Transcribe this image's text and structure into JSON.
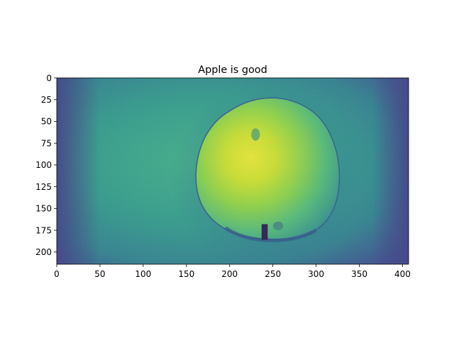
{
  "chart_data": {
    "type": "heatmap",
    "title": "Apple is good",
    "xlabel": "",
    "ylabel": "",
    "image_size": {
      "width": 407,
      "height": 214
    },
    "colormap": "viridis",
    "x_ticks": [
      "0",
      "50",
      "100",
      "150",
      "200",
      "250",
      "300",
      "350",
      "400"
    ],
    "y_ticks": [
      "0",
      "25",
      "50",
      "75",
      "100",
      "125",
      "150",
      "175",
      "200"
    ],
    "xlim": [
      0,
      407
    ],
    "ylim": [
      214,
      0
    ],
    "grid": false,
    "colors": {
      "background": "#3aa38a",
      "dark_edge": "#3a4d8c",
      "apple_body": "#a8d63a",
      "apple_core": "#e8e830",
      "apple_outline": "#2d5a8e",
      "stem": "#2a1a4e"
    }
  }
}
